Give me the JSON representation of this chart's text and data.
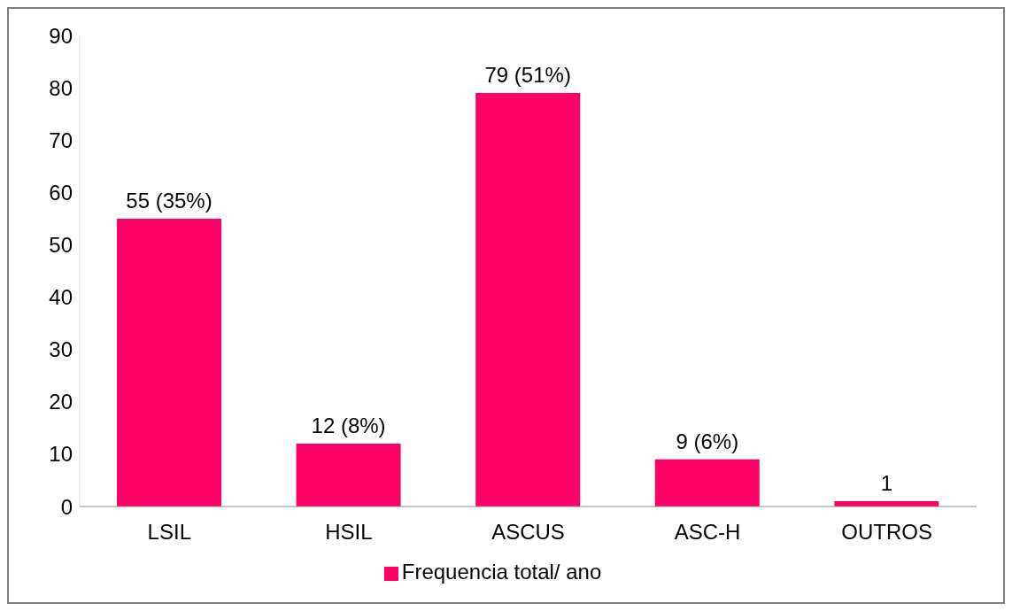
{
  "chart_data": {
    "type": "bar",
    "categories": [
      "LSIL",
      "HSIL",
      "ASCUS",
      "ASC-H",
      "OUTROS"
    ],
    "series": [
      {
        "name": "Frequencia total/ ano",
        "color": "#ff0066",
        "values": [
          55,
          12,
          79,
          9,
          1
        ],
        "value_labels": [
          "55 (35%)",
          "12 (8%)",
          "79 (51%)",
          "9 (6%)",
          "1"
        ]
      }
    ],
    "ylim": [
      0,
      90
    ],
    "yticks": [
      0,
      10,
      20,
      30,
      40,
      50,
      60,
      70,
      80,
      90
    ],
    "grid": false,
    "legend": "bottom"
  }
}
